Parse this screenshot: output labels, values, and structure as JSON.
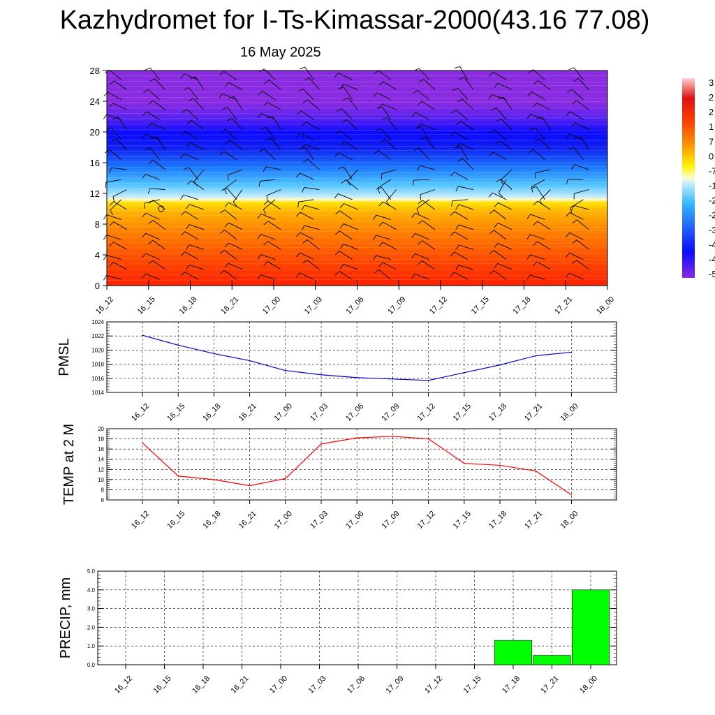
{
  "title": "Kazhydromet for I-Ts-Kimassar-2000(43.16 77.08)",
  "subtitle": "16 May 2025",
  "time_labels": [
    "16_12",
    "16_15",
    "16_18",
    "16_21",
    "17_00",
    "17_03",
    "17_06",
    "17_09",
    "17_12",
    "17_15",
    "17_18",
    "17_21",
    "18_00"
  ],
  "chart_data": [
    {
      "type": "heatmap",
      "title": "",
      "x": [
        "16_12",
        "16_15",
        "16_18",
        "16_21",
        "17_00",
        "17_03",
        "17_06",
        "17_09",
        "17_12",
        "17_15",
        "17_18",
        "17_21",
        "18_00"
      ],
      "ylim": [
        0,
        28
      ],
      "yticks": [
        0,
        4,
        8,
        12,
        16,
        20,
        24,
        28
      ],
      "freezing_level": 11.2,
      "colorbar_labels": [
        "3",
        "2",
        "2",
        "1",
        "7",
        "0",
        "-7",
        "-1",
        "-2",
        "-2",
        "-3",
        "-4",
        "-4",
        "-5"
      ],
      "colors": {
        "warm_low": "#ff2a00",
        "warm_mid": "#ff8c00",
        "warm_high": "#ffe600",
        "zero": "#fffccf",
        "cool": "#3fbfff",
        "cold": "#0a0aff",
        "top": "#8a2be2"
      },
      "overlay": "wind barbs"
    },
    {
      "type": "line",
      "ylabel": "PMSL",
      "x": [
        "16_12",
        "16_15",
        "16_18",
        "16_21",
        "17_00",
        "17_03",
        "17_06",
        "17_09",
        "17_12",
        "17_15",
        "17_18",
        "17_21",
        "18_00"
      ],
      "values": [
        1022.1,
        1020.7,
        1019.5,
        1018.5,
        1017.1,
        1016.5,
        1016.1,
        1015.9,
        1015.7,
        1016.8,
        1017.9,
        1019.2,
        1019.7
      ],
      "ylim": [
        1014,
        1024
      ],
      "yticks": [
        "1014",
        "1016",
        "1018",
        "1020",
        "1022",
        "1024"
      ],
      "color": "#0000cc",
      "grid": true
    },
    {
      "type": "line",
      "ylabel": "TEMP at 2 M",
      "x": [
        "16_12",
        "16_15",
        "16_18",
        "16_21",
        "17_00",
        "17_03",
        "17_06",
        "17_09",
        "17_12",
        "17_15",
        "17_18",
        "17_21",
        "18_00"
      ],
      "values": [
        17.2,
        10.7,
        10.0,
        8.8,
        10.2,
        17.0,
        18.2,
        18.5,
        18.0,
        13.2,
        12.8,
        11.7,
        7.0
      ],
      "ylim": [
        6,
        20
      ],
      "yticks": [
        "6",
        "8",
        "10",
        "12",
        "14",
        "16",
        "18",
        "20"
      ],
      "color": "#ff0000",
      "grid": true
    },
    {
      "type": "bar",
      "ylabel": "PRECIP, mm",
      "categories": [
        "16_12",
        "16_15",
        "16_18",
        "16_21",
        "17_00",
        "17_03",
        "17_06",
        "17_09",
        "17_12",
        "17_15",
        "17_18",
        "17_21",
        "18_00"
      ],
      "values": [
        0,
        0,
        0,
        0,
        0,
        0,
        0,
        0,
        0,
        0,
        1.3,
        0.5,
        4.0
      ],
      "ylim": [
        0,
        5
      ],
      "yticks": [
        "0.0",
        "1.0",
        "2.0",
        "3.0",
        "4.0",
        "5.0"
      ],
      "color": "#00ff00",
      "grid": true
    }
  ]
}
